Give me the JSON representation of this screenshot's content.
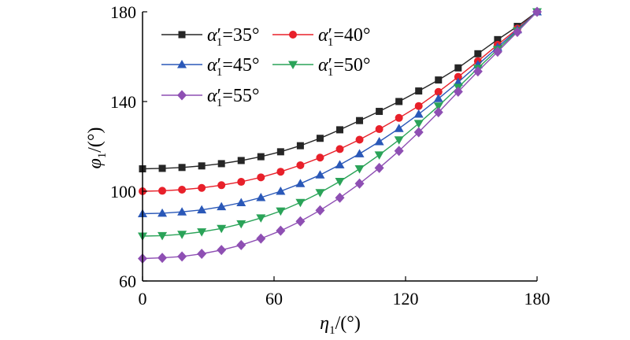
{
  "chart_data": {
    "type": "line",
    "xlabel": {
      "symbol": "η",
      "sub": "1",
      "unit": "/(°)"
    },
    "ylabel": {
      "symbol": "φ",
      "sub": "1",
      "unit": "/(°)"
    },
    "xlim": [
      0,
      180
    ],
    "ylim": [
      60,
      180
    ],
    "xticks": [
      0,
      60,
      120,
      180
    ],
    "yticks": [
      60,
      100,
      140,
      180
    ],
    "grid": false,
    "legend_position": "top-left",
    "x": [
      0,
      9,
      18,
      27,
      36,
      45,
      54,
      63,
      72,
      81,
      90,
      99,
      108,
      117,
      126,
      135,
      144,
      153,
      162,
      171,
      180
    ],
    "series": [
      {
        "name": "α′1=35°",
        "prefix": "α",
        "prime": "′",
        "sub": "1",
        "value": "=35°",
        "marker": "square",
        "color": "#262626",
        "values": [
          110.0,
          110.2,
          110.6,
          111.3,
          112.3,
          113.7,
          115.4,
          117.6,
          120.3,
          123.6,
          127.4,
          131.5,
          135.6,
          140.0,
          144.7,
          149.6,
          155.0,
          161.3,
          167.6,
          173.5,
          180.0
        ]
      },
      {
        "name": "α′1=40°",
        "prefix": "α",
        "prime": "′",
        "sub": "1",
        "value": "=40°",
        "marker": "circle",
        "color": "#e8202a",
        "values": [
          100.0,
          100.2,
          100.7,
          101.5,
          102.7,
          104.2,
          106.2,
          108.7,
          111.6,
          115.0,
          118.8,
          123.0,
          127.7,
          132.7,
          138.0,
          144.3,
          151.0,
          158.0,
          165.3,
          172.5,
          180.0
        ]
      },
      {
        "name": "α′1=45°",
        "prefix": "α",
        "prime": "′",
        "sub": "1",
        "value": "=45°",
        "marker": "triangle-up",
        "color": "#2a58b8",
        "values": [
          90.0,
          90.2,
          90.8,
          91.7,
          93.1,
          94.9,
          97.2,
          100.0,
          103.4,
          107.3,
          111.8,
          116.7,
          122.1,
          128.0,
          134.4,
          141.3,
          148.6,
          156.4,
          164.2,
          172.0,
          180.0
        ]
      },
      {
        "name": "α′1=50°",
        "prefix": "α",
        "prime": "′",
        "sub": "1",
        "value": "=50°",
        "marker": "triangle-down",
        "color": "#2aa358",
        "values": [
          80.0,
          80.2,
          80.8,
          81.9,
          83.4,
          85.5,
          88.1,
          91.2,
          95.0,
          99.4,
          104.4,
          110.0,
          116.2,
          122.9,
          130.2,
          138.0,
          146.3,
          154.8,
          163.2,
          171.5,
          180.0
        ]
      },
      {
        "name": "α′1=55°",
        "prefix": "α",
        "prime": "′",
        "sub": "1",
        "value": "=55°",
        "marker": "diamond",
        "color": "#8e4fb3",
        "values": [
          70.0,
          70.3,
          70.9,
          72.1,
          73.8,
          76.0,
          78.9,
          82.4,
          86.6,
          91.5,
          97.1,
          103.4,
          110.4,
          118.0,
          126.3,
          135.2,
          144.4,
          153.4,
          162.2,
          171.0,
          180.0
        ]
      }
    ]
  }
}
